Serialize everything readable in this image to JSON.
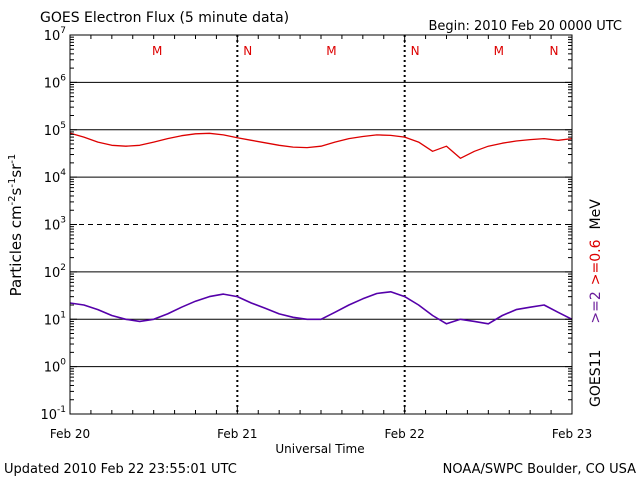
{
  "header": {
    "title": "GOES Electron Flux (5 minute data)",
    "begin": "Begin: 2010 Feb 20 0000 UTC"
  },
  "footer": {
    "updated": "Updated 2010 Feb 22 23:55:01 UTC",
    "source": "NOAA/SWPC Boulder, CO USA"
  },
  "colors": {
    "red_series": "#dd0000",
    "purple_series": "#5500aa",
    "label_red": "#dd0000",
    "label_purple": "#6a1b9a"
  },
  "chart_data": {
    "type": "line",
    "title": "GOES Electron Flux (5 minute data)",
    "xlabel": "Universal Time",
    "ylabel": "Particles cm⁻²s⁻¹sr⁻¹",
    "yscale": "log",
    "ylim": [
      0.1,
      10000000
    ],
    "xlim": [
      0,
      72
    ],
    "x_unit": "hours since 2010 Feb 20 0000 UTC",
    "x_ticks": [
      {
        "x": 0,
        "label": "Feb 20"
      },
      {
        "x": 24,
        "label": "Feb 21"
      },
      {
        "x": 48,
        "label": "Feb 22"
      },
      {
        "x": 72,
        "label": "Feb 23"
      }
    ],
    "y_ticks": [
      {
        "v": 0.1,
        "base": "10",
        "exp": "-1"
      },
      {
        "v": 1,
        "base": "10",
        "exp": "0"
      },
      {
        "v": 10,
        "base": "10",
        "exp": "1"
      },
      {
        "v": 100,
        "base": "10",
        "exp": "2"
      },
      {
        "v": 1000,
        "base": "10",
        "exp": "3"
      },
      {
        "v": 10000,
        "base": "10",
        "exp": "4"
      },
      {
        "v": 100000,
        "base": "10",
        "exp": "5"
      },
      {
        "v": 1000000,
        "base": "10",
        "exp": "6"
      },
      {
        "v": 10000000,
        "base": "10",
        "exp": "7"
      }
    ],
    "dashed_gridline": 1000,
    "markers": [
      {
        "x": 12.5,
        "label": "M"
      },
      {
        "x": 25.5,
        "label": "N"
      },
      {
        "x": 37.5,
        "label": "M"
      },
      {
        "x": 49.5,
        "label": "N"
      },
      {
        "x": 61.5,
        "label": "M"
      },
      {
        "x": 72.5,
        "label": "N"
      }
    ],
    "right_labels": {
      "satellite": "GOES11",
      "energy_red": ">=0.6",
      "energy_purple": ">=2",
      "unit": "MeV"
    },
    "series": [
      {
        "name": ">=0.6 MeV",
        "color": "#dd0000",
        "points": [
          [
            0,
            85000
          ],
          [
            2,
            70000
          ],
          [
            4,
            55000
          ],
          [
            6,
            47000
          ],
          [
            8,
            45000
          ],
          [
            10,
            47000
          ],
          [
            12,
            55000
          ],
          [
            14,
            65000
          ],
          [
            16,
            75000
          ],
          [
            18,
            82000
          ],
          [
            20,
            84000
          ],
          [
            22,
            78000
          ],
          [
            24,
            68000
          ],
          [
            26,
            60000
          ],
          [
            28,
            53000
          ],
          [
            30,
            47000
          ],
          [
            32,
            43000
          ],
          [
            34,
            42000
          ],
          [
            36,
            45000
          ],
          [
            38,
            55000
          ],
          [
            40,
            65000
          ],
          [
            42,
            72000
          ],
          [
            44,
            78000
          ],
          [
            46,
            76000
          ],
          [
            48,
            70000
          ],
          [
            50,
            55000
          ],
          [
            52,
            35000
          ],
          [
            54,
            45000
          ],
          [
            56,
            25000
          ],
          [
            58,
            35000
          ],
          [
            60,
            45000
          ],
          [
            62,
            52000
          ],
          [
            64,
            58000
          ],
          [
            66,
            62000
          ],
          [
            68,
            65000
          ],
          [
            70,
            60000
          ],
          [
            72,
            65000
          ]
        ]
      },
      {
        "name": ">=2 MeV",
        "color": "#5500aa",
        "points": [
          [
            0,
            22
          ],
          [
            2,
            20
          ],
          [
            4,
            16
          ],
          [
            6,
            12
          ],
          [
            8,
            10
          ],
          [
            10,
            9
          ],
          [
            12,
            10
          ],
          [
            14,
            13
          ],
          [
            16,
            18
          ],
          [
            18,
            24
          ],
          [
            20,
            30
          ],
          [
            22,
            34
          ],
          [
            24,
            30
          ],
          [
            26,
            22
          ],
          [
            28,
            17
          ],
          [
            30,
            13
          ],
          [
            32,
            11
          ],
          [
            34,
            10
          ],
          [
            36,
            10
          ],
          [
            38,
            14
          ],
          [
            40,
            20
          ],
          [
            42,
            27
          ],
          [
            44,
            35
          ],
          [
            46,
            38
          ],
          [
            48,
            30
          ],
          [
            50,
            20
          ],
          [
            52,
            12
          ],
          [
            54,
            8
          ],
          [
            56,
            10
          ],
          [
            58,
            9
          ],
          [
            60,
            8
          ],
          [
            62,
            12
          ],
          [
            64,
            16
          ],
          [
            66,
            18
          ],
          [
            68,
            20
          ],
          [
            70,
            14
          ],
          [
            72,
            10
          ]
        ]
      }
    ]
  }
}
